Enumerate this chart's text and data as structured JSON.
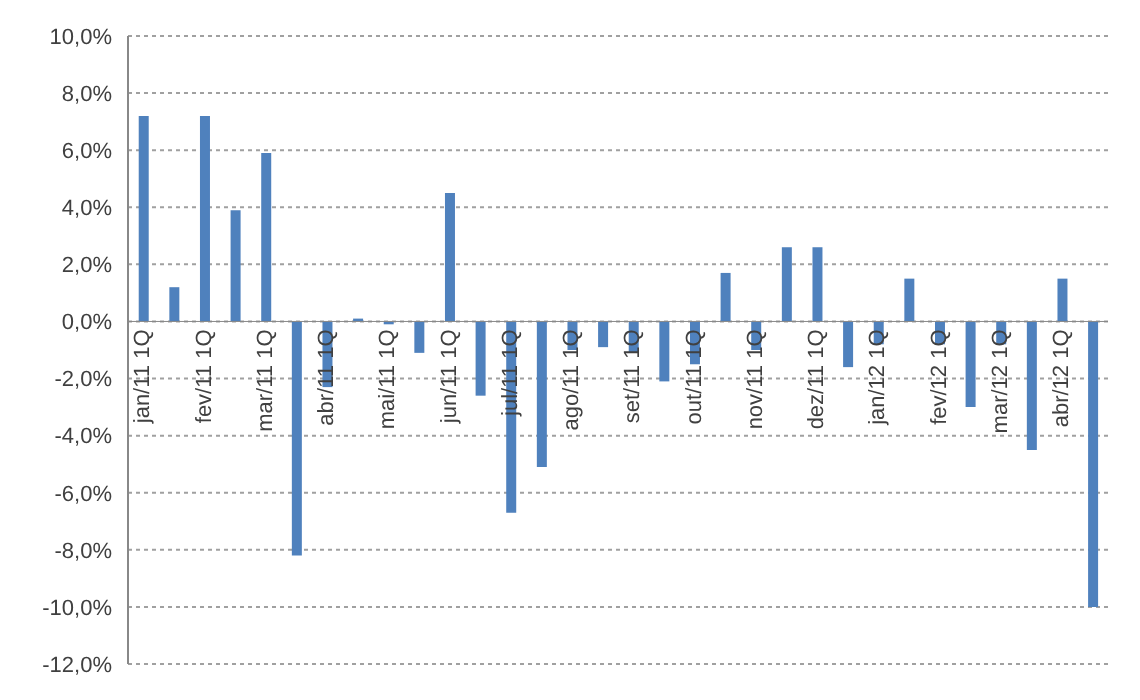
{
  "chart_data": {
    "type": "bar",
    "categories": [
      "jan/11 1Q",
      null,
      "fev/11 1Q",
      null,
      "mar/11 1Q",
      null,
      "abr/11 1Q",
      null,
      "mai/11 1Q",
      null,
      "jun/11 1Q",
      null,
      "jul/11 1Q",
      null,
      "ago/11 1Q",
      null,
      "set/11 1Q",
      null,
      "out/11 1Q",
      null,
      "nov/11 1Q",
      null,
      "dez/11 1Q",
      null,
      "jan/12 1Q",
      null,
      "fev/12 1Q",
      null,
      "mar/12 1Q",
      null,
      "abr/12 1Q",
      null
    ],
    "values": [
      7.2,
      1.2,
      7.2,
      3.9,
      5.9,
      -8.2,
      -2.3,
      0.1,
      -0.1,
      -1.1,
      4.5,
      -2.6,
      -6.7,
      -5.1,
      -1.0,
      -0.9,
      -1.1,
      -2.1,
      -1.5,
      1.7,
      -1.0,
      2.6,
      2.6,
      -1.6,
      -0.8,
      1.5,
      -0.8,
      -3.0,
      -0.8,
      -4.5,
      1.5,
      -10.0
    ],
    "color": "#4f81bd",
    "ylim": [
      -12,
      10
    ],
    "yticks": [
      {
        "value": -12,
        "label": "-12,0%"
      },
      {
        "value": -10,
        "label": "-10,0%"
      },
      {
        "value": -8,
        "label": "-8,0%"
      },
      {
        "value": -6,
        "label": "-6,0%"
      },
      {
        "value": -4,
        "label": "-4,0%"
      },
      {
        "value": -2,
        "label": "-2,0%"
      },
      {
        "value": 0,
        "label": "0,0%"
      },
      {
        "value": 2,
        "label": "2,0%"
      },
      {
        "value": 4,
        "label": "4,0%"
      },
      {
        "value": 6,
        "label": "6,0%"
      },
      {
        "value": 8,
        "label": "8,0%"
      },
      {
        "value": 10,
        "label": "10,0%"
      }
    ],
    "grid": "y"
  }
}
